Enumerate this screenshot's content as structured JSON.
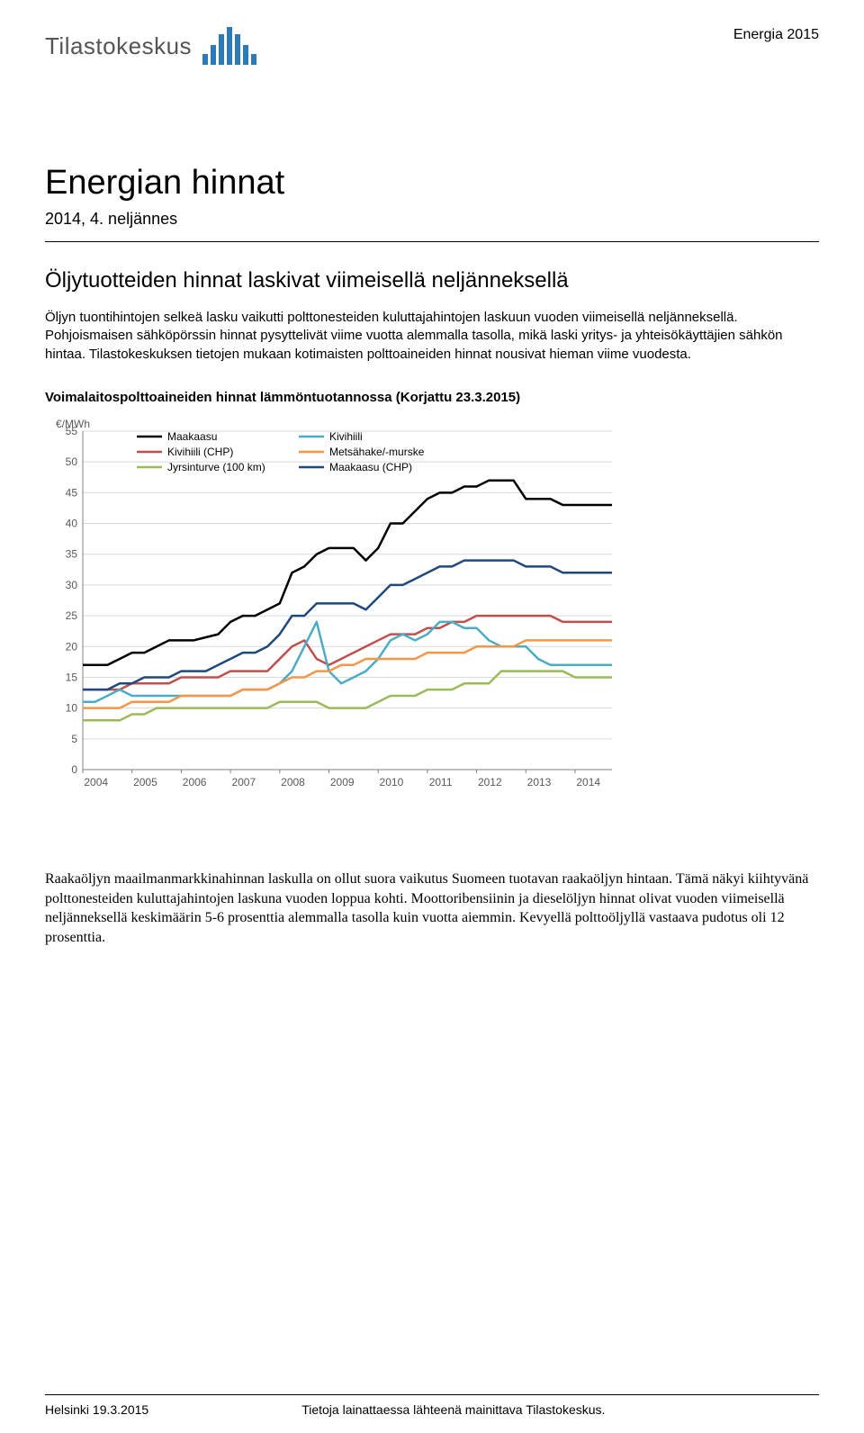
{
  "header": {
    "logo_text": "Tilastokeskus",
    "category": "Energia 2015"
  },
  "title": "Energian hinnat",
  "subtitle": "2014, 4. neljännes",
  "section_heading": "Öljytuotteiden hinnat laskivat viimeisellä neljänneksellä",
  "intro_paragraph": "Öljyn tuontihintojen selkeä lasku vaikutti polttonesteiden kuluttajahintojen laskuun vuoden viimeisellä neljänneksellä. Pohjoismaisen sähköpörssin hinnat pysyttelivät viime vuotta alemmalla tasolla, mikä laski yritys- ja yhteisökäyttäjien sähkön hintaa. Tilastokeskuksen tietojen mukaan kotimaisten polttoaineiden hinnat nousivat hieman viime vuodesta.",
  "chart": {
    "title": "Voimalaitospolttoaineiden hinnat lämmöntuotannossa (Korjattu 23.3.2015)",
    "y_axis_label": "€/MWh",
    "ylim": [
      0,
      55
    ],
    "ytick_step": 5,
    "x_categories": [
      "2004",
      "2005",
      "2006",
      "2007",
      "2008",
      "2009",
      "2010",
      "2011",
      "2012",
      "2013",
      "2014"
    ],
    "background_color": "#ffffff",
    "grid_color": "#d9d9d9",
    "axis_color": "#808080",
    "line_width": 2.5,
    "series": [
      {
        "name": "Maakaasu",
        "color": "#000000",
        "values": [
          17,
          17,
          17,
          18,
          19,
          19,
          20,
          21,
          21,
          21,
          21.5,
          22,
          24,
          25,
          25,
          26,
          27,
          32,
          33,
          35,
          36,
          36,
          36,
          34,
          36,
          40,
          40,
          42,
          44,
          45,
          45,
          46,
          46,
          47,
          47,
          47,
          44,
          44,
          44,
          43,
          43,
          43,
          43,
          43
        ]
      },
      {
        "name": "Kivihiili (CHP)",
        "color": "#c0504d",
        "values": [
          13,
          13,
          13,
          13,
          14,
          14,
          14,
          14,
          15,
          15,
          15,
          15,
          16,
          16,
          16,
          16,
          18,
          20,
          21,
          18,
          17,
          18,
          19,
          20,
          21,
          22,
          22,
          22,
          23,
          23,
          24,
          24,
          25,
          25,
          25,
          25,
          25,
          25,
          25,
          24,
          24,
          24,
          24,
          24
        ]
      },
      {
        "name": "Jyrsinturve (100 km)",
        "color": "#9bbb59",
        "values": [
          8,
          8,
          8,
          8,
          9,
          9,
          10,
          10,
          10,
          10,
          10,
          10,
          10,
          10,
          10,
          10,
          11,
          11,
          11,
          11,
          10,
          10,
          10,
          10,
          11,
          12,
          12,
          12,
          13,
          13,
          13,
          14,
          14,
          14,
          16,
          16,
          16,
          16,
          16,
          16,
          15,
          15,
          15,
          15
        ]
      },
      {
        "name": "Kivihiili",
        "color": "#4bacc6",
        "values": [
          11,
          11,
          12,
          13,
          12,
          12,
          12,
          12,
          12,
          12,
          12,
          12,
          12,
          13,
          13,
          13,
          14,
          16,
          20,
          24,
          16,
          14,
          15,
          16,
          18,
          21,
          22,
          21,
          22,
          24,
          24,
          23,
          23,
          21,
          20,
          20,
          20,
          18,
          17,
          17,
          17,
          17,
          17,
          17
        ]
      },
      {
        "name": "Metsähake/-murske",
        "color": "#f79646",
        "values": [
          10,
          10,
          10,
          10,
          11,
          11,
          11,
          11,
          12,
          12,
          12,
          12,
          12,
          13,
          13,
          13,
          14,
          15,
          15,
          16,
          16,
          17,
          17,
          18,
          18,
          18,
          18,
          18,
          19,
          19,
          19,
          19,
          20,
          20,
          20,
          20,
          21,
          21,
          21,
          21,
          21,
          21,
          21,
          21
        ]
      },
      {
        "name": "Maakaasu (CHP)",
        "color": "#1f497d",
        "values": [
          13,
          13,
          13,
          14,
          14,
          15,
          15,
          15,
          16,
          16,
          16,
          17,
          18,
          19,
          19,
          20,
          22,
          25,
          25,
          27,
          27,
          27,
          27,
          26,
          28,
          30,
          30,
          31,
          32,
          33,
          33,
          34,
          34,
          34,
          34,
          34,
          33,
          33,
          33,
          32,
          32,
          32,
          32,
          32
        ]
      }
    ],
    "legend_cols": [
      [
        "Maakaasu",
        "Kivihiili (CHP)",
        "Jyrsinturve (100 km)"
      ],
      [
        "Kivihiili",
        "Metsähake/-murske",
        "Maakaasu (CHP)"
      ]
    ]
  },
  "body_paragraph": "Raakaöljyn maailmanmarkkinahinnan laskulla on ollut suora vaikutus Suomeen tuotavan raakaöljyn hintaan. Tämä näkyi kiihtyvänä polttonesteiden kuluttajahintojen laskuna vuoden loppua kohti. Moottoribensiinin ja dieselöljyn hinnat olivat vuoden viimeisellä neljänneksellä keskimäärin 5-6 prosenttia alemmalla tasolla kuin vuotta aiemmin. Kevyellä polttoöljyllä vastaava pudotus oli 12 prosenttia.",
  "footer": {
    "left": "Helsinki 19.3.2015",
    "right": "Tietoja lainattaessa lähteenä mainittava Tilastokeskus."
  }
}
